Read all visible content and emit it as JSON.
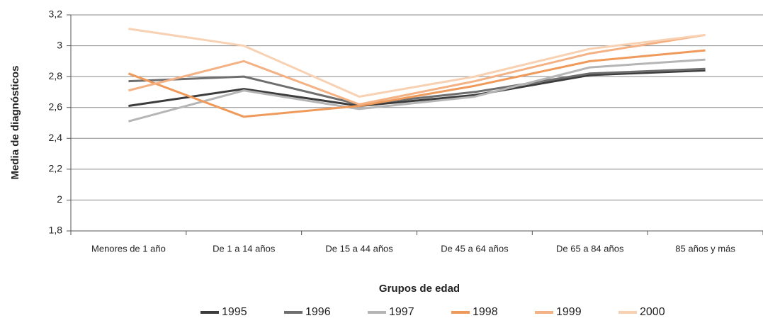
{
  "chart_data": {
    "type": "line",
    "x_label": "Grupos de edad",
    "y_label": "Media de diagnósticos",
    "categories": [
      "Menores de 1 año",
      "De 1 a 14 años",
      "De 15 a 44 años",
      "De 45 a 64 años",
      "De 65 a 84 años",
      "85 años y más"
    ],
    "ylim": [
      1.8,
      3.2
    ],
    "yticks": [
      {
        "value": 1.8,
        "label": "1,8"
      },
      2,
      {
        "value": 2.2,
        "label": "2,2"
      },
      {
        "value": 2.4,
        "label": "2,4"
      },
      {
        "value": 2.6,
        "label": "2,6"
      },
      {
        "value": 2.8,
        "label": "2,8"
      },
      3,
      {
        "value": 3.2,
        "label": "3,2"
      }
    ],
    "grid": true,
    "legend": "bottom",
    "series": [
      {
        "name": "1995",
        "color": "#3c3c3c",
        "values": [
          2.61,
          2.72,
          2.61,
          2.68,
          2.81,
          2.84
        ]
      },
      {
        "name": "1996",
        "color": "#6e6e6e",
        "values": [
          2.77,
          2.8,
          2.62,
          2.7,
          2.82,
          2.85
        ]
      },
      {
        "name": "1997",
        "color": "#b5b5b5",
        "values": [
          2.51,
          2.71,
          2.59,
          2.67,
          2.86,
          2.91
        ]
      },
      {
        "name": "1998",
        "color": "#ef9a5a",
        "values": [
          2.82,
          2.54,
          2.61,
          2.74,
          2.9,
          2.97
        ]
      },
      {
        "name": "1999",
        "color": "#f3b184",
        "values": [
          2.71,
          2.9,
          2.62,
          2.77,
          2.95,
          3.07
        ]
      },
      {
        "name": "2000",
        "color": "#f8d0b2",
        "values": [
          3.11,
          3.0,
          2.67,
          2.8,
          2.98,
          3.07
        ]
      }
    ]
  }
}
